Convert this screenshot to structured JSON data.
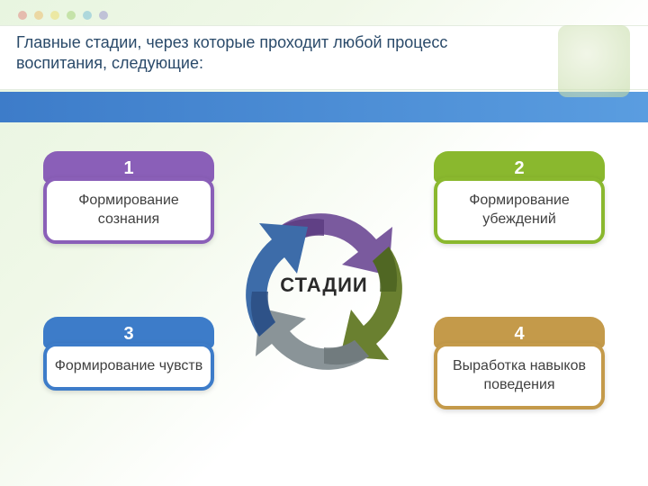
{
  "title": "Главные стадии, через которые проходит любой процесс воспитания, следующие:",
  "center_label": "СТАДИИ",
  "cards": {
    "c1": {
      "num": "1",
      "text": "Формирование сознания",
      "color": "#8a5fb8"
    },
    "c2": {
      "num": "2",
      "text": "Формирование убеждений",
      "color": "#8ab82e"
    },
    "c3": {
      "num": "3",
      "text": "Формирование чувств",
      "color": "#3d7cc9"
    },
    "c4": {
      "num": "4",
      "text": "Выработка навыков поведения",
      "color": "#c49a4a"
    }
  },
  "arrows": {
    "top": {
      "fill": "#7a5a9e",
      "shade": "#5a3a7e"
    },
    "right": {
      "fill": "#6a8030",
      "shade": "#4a6020"
    },
    "bottom": {
      "fill": "#8a9498",
      "shade": "#6a7478"
    },
    "left": {
      "fill": "#3d6ca9",
      "shade": "#2a4c80"
    }
  },
  "background": {
    "band_blue": "#4a8cd0",
    "page_tint": "#e8f5e0"
  },
  "deco_dots": [
    "#e05050",
    "#f0a030",
    "#f0d030",
    "#80c040",
    "#40a0d0",
    "#7060c0"
  ]
}
